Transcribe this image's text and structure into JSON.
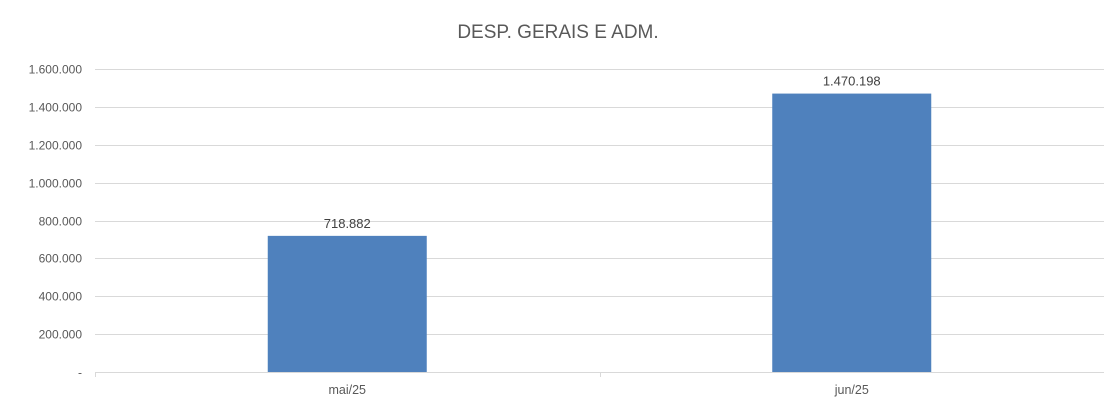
{
  "chart_data": {
    "type": "bar",
    "title": "DESP. GERAIS E ADM.",
    "categories": [
      "mai/25",
      "jun/25"
    ],
    "values": [
      718882,
      1470198
    ],
    "data_labels": [
      "718.882",
      "1.470.198"
    ],
    "ylim": [
      0,
      1600000
    ],
    "y_ticks": [
      0,
      200000,
      400000,
      600000,
      800000,
      1000000,
      1200000,
      1400000,
      1600000
    ],
    "y_tick_labels": [
      "-",
      "200.000",
      "400.000",
      "600.000",
      "800.000",
      "1.000.000",
      "1.200.000",
      "1.400.000",
      "1.600.000"
    ],
    "grid": true,
    "legend": "none",
    "bar_color": "#4f81bd",
    "grid_color": "#d9d9d9"
  }
}
